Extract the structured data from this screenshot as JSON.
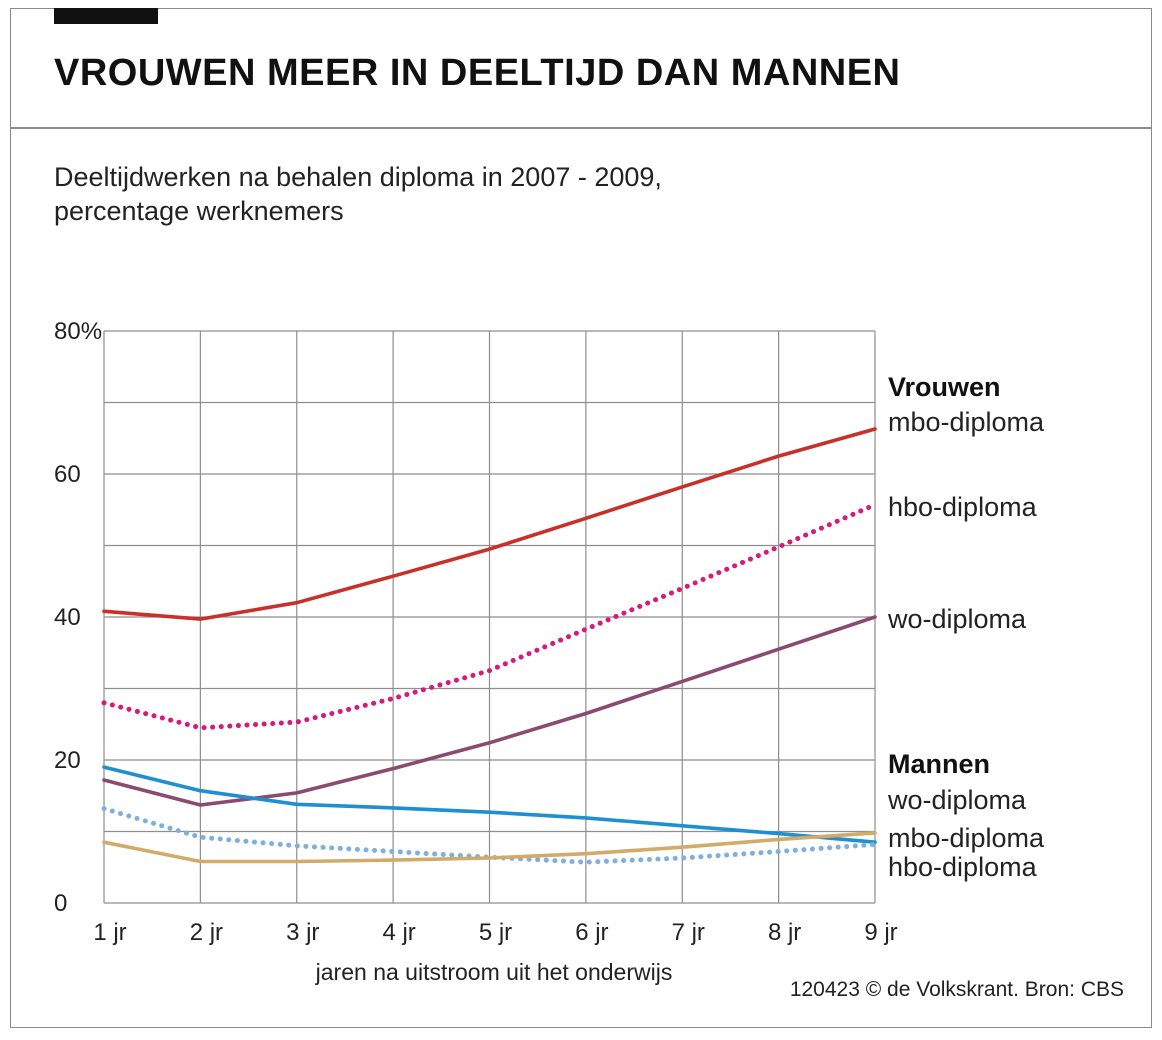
{
  "chart_data": {
    "type": "line",
    "title": "VROUWEN MEER IN DEELTIJD DAN MANNEN",
    "subtitle_line1": "Deeltijdwerken na behalen diploma in 2007 - 2009,",
    "subtitle_line2": "percentage werknemers",
    "xlabel": "jaren na uitstroom uit het onderwijs",
    "categories": [
      "1 jr",
      "2 jr",
      "3 jr",
      "4 jr",
      "5 jr",
      "6 jr",
      "7 jr",
      "8 jr",
      "9 jr"
    ],
    "x": [
      1,
      2,
      3,
      4,
      5,
      6,
      7,
      8,
      9
    ],
    "ylim": [
      0,
      80
    ],
    "yticks": [
      {
        "value": 80,
        "label": "80%"
      },
      {
        "value": 60,
        "label": "60"
      },
      {
        "value": 40,
        "label": "40"
      },
      {
        "value": 20,
        "label": "20"
      },
      {
        "value": 0,
        "label": "0"
      }
    ],
    "grid": true,
    "legend_placement": "right",
    "series": [
      {
        "name": "mbo-diploma",
        "group": "Vrouwen",
        "style": "solid",
        "color": "#c8302a",
        "values": [
          40.8,
          39.7,
          42.0,
          45.7,
          49.5,
          53.8,
          58.2,
          62.5,
          66.3
        ]
      },
      {
        "name": "hbo-diploma",
        "group": "Vrouwen",
        "style": "dotted",
        "color": "#d6197d",
        "values": [
          28.0,
          24.5,
          25.3,
          28.6,
          32.5,
          38.3,
          44.0,
          49.8,
          55.7
        ]
      },
      {
        "name": "wo-diploma",
        "group": "Vrouwen",
        "style": "solid",
        "color": "#8a4a72",
        "values": [
          17.2,
          13.7,
          15.4,
          18.8,
          22.4,
          26.5,
          31.0,
          35.5,
          40.0
        ]
      },
      {
        "name": "wo-diploma",
        "group": "Mannen",
        "style": "solid",
        "color": "#1e8fd0",
        "values": [
          19.0,
          15.7,
          13.8,
          13.3,
          12.7,
          11.9,
          10.8,
          9.7,
          8.5
        ]
      },
      {
        "name": "hbo-diploma",
        "group": "Mannen",
        "style": "dotted",
        "color": "#7fb0dc",
        "values": [
          13.2,
          9.2,
          8.0,
          7.2,
          6.4,
          5.7,
          6.3,
          7.2,
          8.2
        ]
      },
      {
        "name": "mbo-diploma",
        "group": "Mannen",
        "style": "solid",
        "color": "#d2aa6a",
        "values": [
          8.5,
          5.8,
          5.8,
          6.0,
          6.3,
          6.9,
          7.8,
          8.9,
          9.8
        ]
      }
    ],
    "legend": {
      "vrouwen_header": "Vrouwen",
      "mannen_header": "Mannen",
      "labels": [
        {
          "text": "mbo-diploma",
          "group": "Vrouwen"
        },
        {
          "text": "hbo-diploma",
          "group": "Vrouwen"
        },
        {
          "text": "wo-diploma",
          "group": "Vrouwen"
        },
        {
          "text": "wo-diploma",
          "group": "Mannen"
        },
        {
          "text": "mbo-diploma",
          "group": "Mannen"
        },
        {
          "text": "hbo-diploma",
          "group": "Mannen"
        }
      ]
    },
    "source": "120423 © de Volkskrant. Bron: CBS"
  }
}
